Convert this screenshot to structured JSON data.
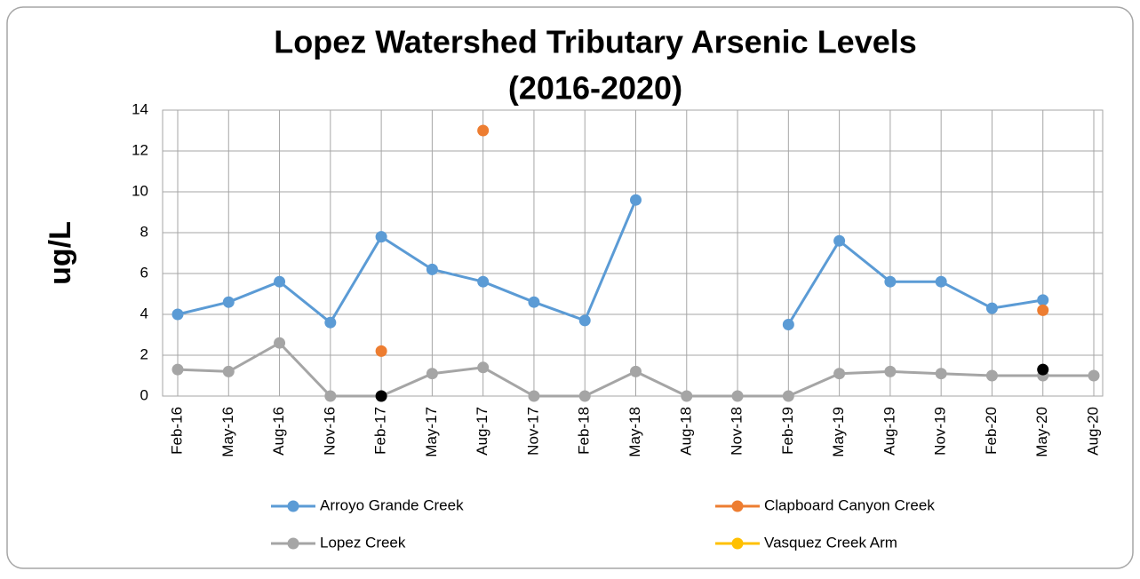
{
  "chart_data": {
    "type": "line",
    "title": [
      "Lopez Watershed Tributary Arsenic Levels",
      "(2016-2020)"
    ],
    "y_label": "ug/L",
    "categories": [
      "Feb-16",
      "May-16",
      "Aug-16",
      "Nov-16",
      "Feb-17",
      "May-17",
      "Aug-17",
      "Nov-17",
      "Feb-18",
      "May-18",
      "Aug-18",
      "Nov-18",
      "Feb-19",
      "May-19",
      "Aug-19",
      "Nov-19",
      "Feb-20",
      "May-20",
      "Aug-20"
    ],
    "series": [
      {
        "name": "Arroyo Grande Creek",
        "color": "#5b9bd5",
        "values": [
          4.0,
          4.6,
          5.6,
          3.6,
          7.8,
          6.2,
          5.6,
          4.6,
          3.7,
          9.6,
          null,
          null,
          3.5,
          7.6,
          5.6,
          5.6,
          4.3,
          4.7,
          null
        ]
      },
      {
        "name": "Clapboard Canyon Creek",
        "color": "#ed7d31",
        "values": [
          null,
          null,
          null,
          null,
          2.2,
          null,
          13,
          null,
          null,
          null,
          null,
          null,
          null,
          null,
          null,
          null,
          null,
          4.2,
          null
        ]
      },
      {
        "name": "Lopez Creek",
        "color": "#a5a5a5",
        "values": [
          1.3,
          1.2,
          2.6,
          0,
          0,
          1.1,
          1.4,
          0,
          0,
          1.2,
          0,
          0,
          0,
          1.1,
          1.2,
          1.1,
          1.0,
          1.0,
          1.0
        ]
      },
      {
        "name": "Vasquez Creek Arm",
        "color": "#ffc000",
        "values": [
          null,
          null,
          null,
          null,
          null,
          null,
          null,
          null,
          null,
          null,
          null,
          null,
          null,
          null,
          null,
          null,
          null,
          null,
          null
        ]
      },
      {
        "name": null,
        "color": "#000000",
        "values": [
          null,
          null,
          null,
          null,
          0,
          null,
          null,
          null,
          null,
          null,
          null,
          null,
          null,
          null,
          null,
          null,
          null,
          1.3,
          null
        ]
      }
    ],
    "ylim": [
      0,
      14
    ],
    "yticks": [
      0,
      2,
      4,
      6,
      8,
      10,
      12,
      14
    ],
    "grid": true
  }
}
